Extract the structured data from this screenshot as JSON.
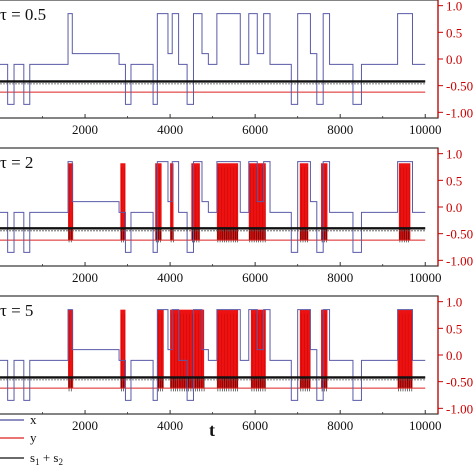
{
  "chart_data": {
    "type": "line",
    "x_label": "t",
    "x_ticks": [
      2000,
      4000,
      6000,
      8000,
      10000
    ],
    "x_range": [
      0,
      10300
    ],
    "right_axis_ticks": [
      1.0,
      0.5,
      0.0,
      -0.5,
      -1.0
    ],
    "right_axis_tick_labels": [
      "1.0",
      "0.5",
      "0.0",
      "-0.50",
      "-1.00"
    ],
    "right_axis_range": [
      -1.05,
      1.05
    ],
    "right_axis_color": "#cc0000",
    "legend": {
      "placement": "bottom-left",
      "entries": [
        {
          "label": "x",
          "color": "#4a4a9a"
        },
        {
          "label": "y",
          "color": "#dd2222"
        },
        {
          "label": "s1 + s2",
          "color": "#111111",
          "parts": [
            "s",
            "1",
            " + s",
            "2"
          ]
        }
      ]
    },
    "x_signal_levels": {
      "high": 0.85,
      "low": -0.85,
      "mid": -0.1,
      "high_mid": 0.1
    },
    "x_signal_steps": [
      [
        0,
        -0.1
      ],
      [
        180,
        -0.85
      ],
      [
        330,
        -0.1
      ],
      [
        560,
        -0.85
      ],
      [
        700,
        -0.1
      ],
      [
        1600,
        0.85
      ],
      [
        1700,
        0.1
      ],
      [
        2800,
        -0.1
      ],
      [
        2950,
        -0.85
      ],
      [
        3080,
        -0.1
      ],
      [
        3600,
        -0.85
      ],
      [
        3700,
        0.85
      ],
      [
        3950,
        0.1
      ],
      [
        4050,
        0.85
      ],
      [
        4200,
        -0.1
      ],
      [
        4400,
        -0.85
      ],
      [
        4550,
        0.85
      ],
      [
        4750,
        0.1
      ],
      [
        4900,
        -0.1
      ],
      [
        5100,
        0.85
      ],
      [
        5650,
        -0.1
      ],
      [
        5850,
        0.85
      ],
      [
        6050,
        0.1
      ],
      [
        6200,
        0.85
      ],
      [
        6350,
        -0.1
      ],
      [
        6850,
        -0.85
      ],
      [
        7000,
        0.85
      ],
      [
        7300,
        0.1
      ],
      [
        7450,
        -0.85
      ],
      [
        7600,
        0.85
      ],
      [
        7750,
        -0.1
      ],
      [
        8300,
        -0.85
      ],
      [
        8500,
        -0.1
      ],
      [
        9350,
        0.85
      ],
      [
        9700,
        -0.1
      ],
      [
        10000,
        -0.1
      ]
    ],
    "panels": [
      {
        "label": "τ = 0.5",
        "s_level": -0.42,
        "y_baseline": -0.62,
        "y_band_top": -0.55,
        "red_blocks": []
      },
      {
        "label": "τ = 2",
        "s_level": -0.4,
        "y_baseline": -0.62,
        "y_band_top": 0.82,
        "red_blocks": [
          [
            1600,
            1720
          ],
          [
            2830,
            2950
          ],
          [
            3650,
            3800
          ],
          [
            4000,
            4080
          ],
          [
            4500,
            4700
          ],
          [
            5100,
            5600
          ],
          [
            5850,
            6250
          ],
          [
            7050,
            7250
          ],
          [
            7550,
            7700
          ],
          [
            9380,
            9650
          ]
        ]
      },
      {
        "label": "τ = 5",
        "s_level": -0.42,
        "y_baseline": -0.62,
        "y_band_top": 0.85,
        "red_blocks": [
          [
            1600,
            1720
          ],
          [
            2830,
            2950
          ],
          [
            3700,
            3850
          ],
          [
            4000,
            4800
          ],
          [
            5100,
            5600
          ],
          [
            5900,
            6250
          ],
          [
            7050,
            7300
          ],
          [
            7550,
            7700
          ],
          [
            9350,
            9700
          ]
        ]
      }
    ]
  }
}
